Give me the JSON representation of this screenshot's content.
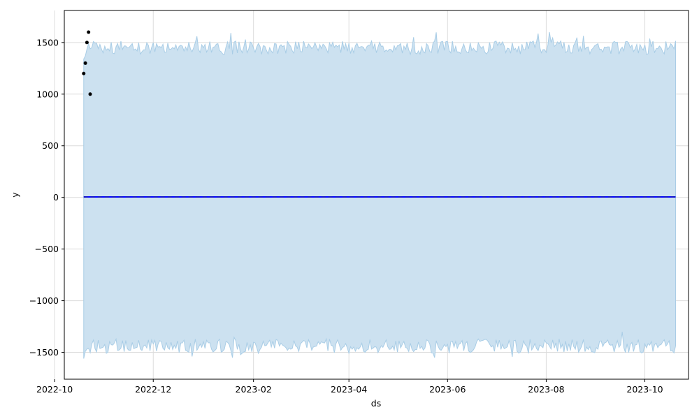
{
  "chart_data": {
    "type": "line",
    "title": "",
    "xlabel": "ds",
    "ylabel": "y",
    "x_axis": {
      "type": "date",
      "range": [
        "2022-10-07",
        "2023-10-28"
      ],
      "ticks": [
        {
          "date": "2022-10-01",
          "label": "2022-10"
        },
        {
          "date": "2022-12-01",
          "label": "2022-12"
        },
        {
          "date": "2023-02-01",
          "label": "2023-02"
        },
        {
          "date": "2023-04-01",
          "label": "2023-04"
        },
        {
          "date": "2023-06-01",
          "label": "2023-06"
        },
        {
          "date": "2023-08-01",
          "label": "2023-08"
        },
        {
          "date": "2023-10-01",
          "label": "2023-10"
        }
      ]
    },
    "y_axis": {
      "range": [
        -1760,
        1810
      ],
      "ticks": [
        {
          "value": -1500,
          "label": "−1500"
        },
        {
          "value": -1000,
          "label": "−1000"
        },
        {
          "value": -500,
          "label": "−500"
        },
        {
          "value": 0,
          "label": "0"
        },
        {
          "value": 500,
          "label": "500"
        },
        {
          "value": 1000,
          "label": "1000"
        },
        {
          "value": 1500,
          "label": "1500"
        }
      ]
    },
    "grid": true,
    "observed": {
      "x": [
        "2022-10-19",
        "2022-10-20",
        "2022-10-21",
        "2022-10-22",
        "2022-10-23"
      ],
      "y": [
        1200,
        1300,
        1500,
        1600,
        1000
      ],
      "color": "#000000"
    },
    "forecast": {
      "start": "2022-10-19",
      "end": "2023-10-20",
      "yhat": 5,
      "color": "#0000ff",
      "trend_color": "#1f1f8f"
    },
    "interval": {
      "start": "2022-10-19",
      "end": "2023-10-20",
      "upper_mean": 1450,
      "lower_mean": -1440,
      "fill_color": "#cce1f0",
      "line_color": "#a9cde6"
    },
    "colors": {
      "background": "#ffffff",
      "grid": "#dcdcdc",
      "axis": "#000000"
    }
  }
}
